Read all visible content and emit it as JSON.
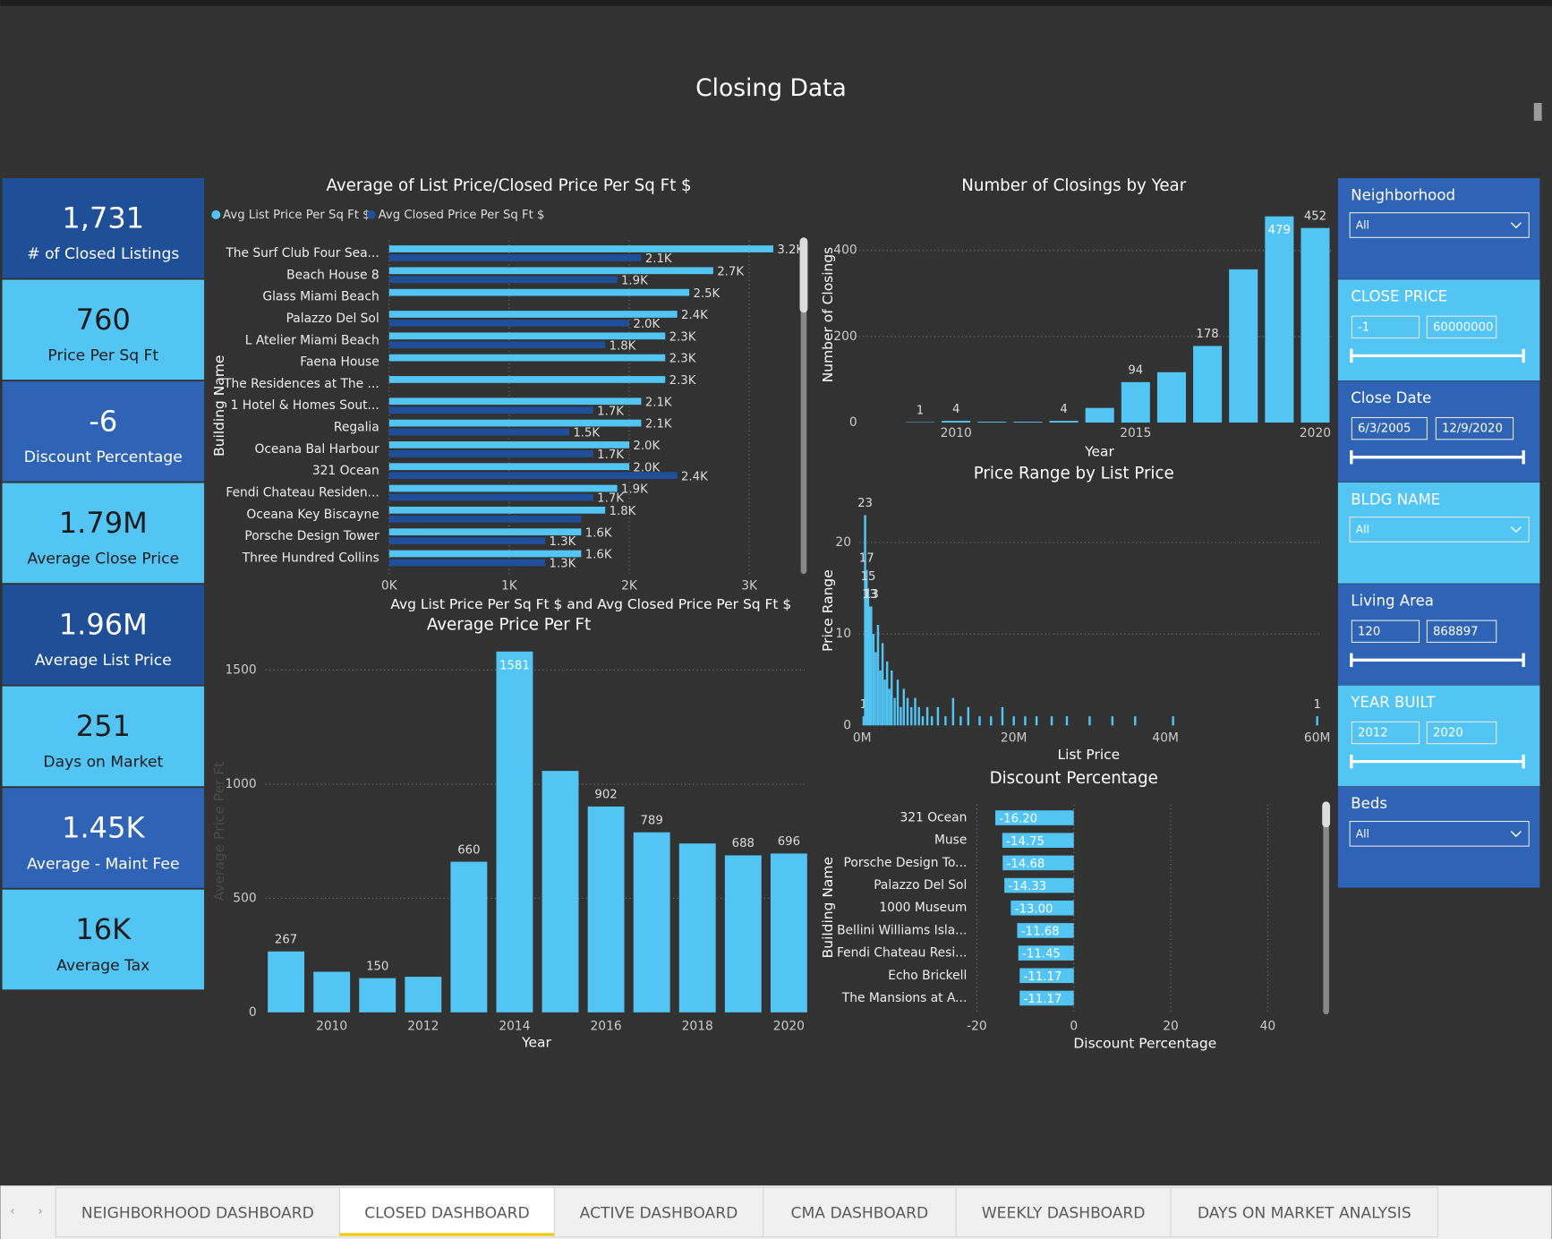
{
  "title": "Closing Data",
  "kpis": [
    {
      "value": "1,731",
      "label": "# of Closed Listings"
    },
    {
      "value": "760",
      "label": "Price Per Sq Ft"
    },
    {
      "value": "-6",
      "label": "Discount Percentage"
    },
    {
      "value": "1.79M",
      "label": "Average Close Price"
    },
    {
      "value": "1.96M",
      "label": "Average List Price"
    },
    {
      "value": "251",
      "label": "Days on Market"
    },
    {
      "value": "1.45K",
      "label": "Average - Maint Fee"
    },
    {
      "value": "16K",
      "label": "Average Tax"
    }
  ],
  "filters": [
    {
      "title": "Neighborhood",
      "value": "All"
    },
    {
      "title": "CLOSE PRICE",
      "min": "-1",
      "max": "60000000"
    },
    {
      "title": "Close Date",
      "min": "6/3/2005",
      "max": "12/9/2020"
    },
    {
      "title": "BLDG NAME",
      "value": "All"
    },
    {
      "title": "Living Area",
      "min": "120",
      "max": "868897"
    },
    {
      "title": "YEAR BUILT",
      "min": "2012",
      "max": "2020"
    },
    {
      "title": "Beds",
      "value": "All"
    }
  ],
  "tabs": [
    "NEIGHBORHOOD DASHBOARD",
    "CLOSED DASHBOARD",
    "ACTIVE DASHBOARD",
    "CMA DASHBOARD",
    "WEEKLY DASHBOARD",
    "DAYS ON MARKET ANALYSIS"
  ],
  "active_tab": 1,
  "chart_data": [
    {
      "type": "hbar",
      "title": "Average of List Price/Closed Price Per Sq Ft $",
      "x_label": "Avg List Price Per Sq Ft $ and Avg Closed Price Per Sq Ft $",
      "y_label": "Building Name",
      "categories": [
        "The Surf Club Four Sea...",
        "Beach House 8",
        "Glass Miami Beach",
        "Palazzo Del Sol",
        "L Atelier Miami Beach",
        "Faena House",
        "The Residences at The ...",
        "1 Hotel & Homes Sout...",
        "Regalia",
        "Oceana Bal Harbour",
        "321 Ocean",
        "Fendi Chateau Residen...",
        "Oceana Key Biscayne",
        "Porsche Design Tower",
        "Three Hundred Collins"
      ],
      "series": [
        {
          "name": "Avg List Price Per Sq Ft $",
          "color": "#52c5f5",
          "values": [
            3200,
            2700,
            2500,
            2400,
            2300,
            2300,
            2300,
            2100,
            2100,
            2000,
            2000,
            1900,
            1800,
            1600,
            1600
          ],
          "value_labels": [
            "3.2K",
            "2.7K",
            "2.5K",
            "2.4K",
            "2.3K",
            "2.3K",
            "2.3K",
            "2.1K",
            "2.1K",
            "2.0K",
            "2.0K",
            "1.9K",
            "1.8K",
            "1.6K",
            "1.6K"
          ]
        },
        {
          "name": "Avg Closed Price Per Sq Ft $",
          "color": "#1f4f9a",
          "values": [
            2100,
            1900,
            null,
            2000,
            1800,
            null,
            null,
            1700,
            1500,
            1700,
            2400,
            1700,
            1600,
            1300,
            1300
          ],
          "value_labels": [
            "2.1K",
            "1.9K",
            null,
            "2.0K",
            "1.8K",
            null,
            null,
            "1.7K",
            "1.5K",
            "1.7K",
            "2.4K",
            "1.7K",
            null,
            "1.3K",
            "1.3K"
          ]
        }
      ],
      "xlim": [
        0,
        3400
      ],
      "xticks": [
        {
          "value": 0,
          "label": "0K"
        },
        {
          "value": 1000,
          "label": "1K"
        },
        {
          "value": 2000,
          "label": "2K"
        },
        {
          "value": 3000,
          "label": "3K"
        }
      ],
      "grid": true
    },
    {
      "type": "column",
      "title": "Number of Closings by Year",
      "x_label": "Year",
      "y_label": "Number of Closings",
      "color": "#52c5f5",
      "x": [
        2009,
        2010,
        2011,
        2012,
        2013,
        2014,
        2015,
        2016,
        2017,
        2018,
        2019,
        2020
      ],
      "values": [
        1,
        4,
        2,
        2,
        4,
        34,
        94,
        117,
        178,
        356,
        479,
        452
      ],
      "value_labels": [
        "1",
        "4",
        null,
        null,
        "4",
        null,
        "94",
        null,
        "178",
        null,
        "479",
        "452"
      ],
      "xlim": [
        2008.4,
        2020.6
      ],
      "xticks": [
        2010,
        2015,
        2020
      ],
      "ylim": [
        0,
        500
      ],
      "yticks": [
        0,
        200,
        400
      ],
      "grid": true
    },
    {
      "type": "column",
      "title": "Price Range by List Price",
      "x_label": "List Price",
      "y_label": "Price Range",
      "color": "#52c5f5",
      "x": [
        0.2,
        0.4,
        0.6,
        0.8,
        1.0,
        1.2,
        1.5,
        1.8,
        2.1,
        2.4,
        2.7,
        3.0,
        3.3,
        3.6,
        3.9,
        4.3,
        4.7,
        5.1,
        5.5,
        6.0,
        6.5,
        7.0,
        7.5,
        8.0,
        8.6,
        9.2,
        10,
        11,
        12,
        13,
        14,
        15.5,
        17,
        18.5,
        20,
        21.5,
        23,
        25,
        27,
        30,
        33,
        36,
        41,
        60
      ],
      "values": [
        1,
        23,
        17,
        15,
        13,
        13,
        10,
        8,
        11,
        6,
        9,
        5,
        7,
        4,
        6,
        3,
        5,
        2,
        4,
        3,
        2,
        3,
        2,
        1,
        2,
        1,
        2,
        1,
        3,
        1,
        2,
        1,
        1,
        2,
        1,
        1,
        1,
        1,
        1,
        1,
        1,
        1,
        1,
        1
      ],
      "value_labels": [
        "1",
        "23",
        "17",
        "15",
        "13",
        "13",
        null,
        null,
        null,
        null,
        null,
        null,
        null,
        null,
        null,
        null,
        null,
        null,
        null,
        null,
        null,
        null,
        null,
        null,
        null,
        null,
        null,
        null,
        null,
        null,
        null,
        null,
        null,
        null,
        null,
        null,
        null,
        null,
        null,
        null,
        null,
        null,
        null,
        "1"
      ],
      "xlim": [
        0,
        60
      ],
      "xticks": [
        {
          "value": 0,
          "label": "0M"
        },
        {
          "value": 20,
          "label": "20M"
        },
        {
          "value": 40,
          "label": "40M"
        },
        {
          "value": 60,
          "label": "60M"
        }
      ],
      "ylim": [
        0,
        25
      ],
      "yticks": [
        0,
        10,
        20
      ],
      "grid": true
    },
    {
      "type": "column",
      "title": "Average Price Per Ft",
      "x_label": "Year",
      "y_label": "Average Price Per Ft",
      "color": "#52c5f5",
      "x": [
        2009,
        2010,
        2011,
        2012,
        2013,
        2014,
        2015,
        2016,
        2017,
        2018,
        2019,
        2020
      ],
      "values": [
        267,
        178,
        150,
        156,
        660,
        1581,
        1058,
        902,
        789,
        740,
        688,
        696
      ],
      "value_labels": [
        "267",
        null,
        "150",
        null,
        "660",
        "1581",
        null,
        "902",
        "789",
        null,
        "688",
        "696"
      ],
      "xlim": [
        2008.5,
        2020.5
      ],
      "xticks": [
        2010,
        2012,
        2014,
        2016,
        2018,
        2020
      ],
      "ylim": [
        0,
        1600
      ],
      "yticks": [
        0,
        500,
        1000,
        1500
      ],
      "grid": true
    },
    {
      "type": "hbar",
      "title": "Discount Percentage",
      "x_label": "Discount Percentage",
      "y_label": "Building Name",
      "categories": [
        "321 Ocean",
        "Muse",
        "Porsche Design To...",
        "Palazzo Del Sol",
        "1000 Museum",
        "Bellini Williams Isla...",
        "Fendi Chateau Resi...",
        "Echo Brickell",
        "The Mansions at A..."
      ],
      "series": [
        {
          "name": "Discount Percentage",
          "color": "#52c5f5",
          "values": [
            -16.2,
            -14.75,
            -14.68,
            -14.33,
            -13,
            -11.68,
            -11.45,
            -11.17,
            -11.17
          ],
          "value_labels": [
            "-16.20",
            "-14.75",
            "-14.68",
            "-14.33",
            "-13.00",
            "-11.68",
            "-11.45",
            "-11.17",
            "-11.17"
          ]
        }
      ],
      "xlim": [
        -20,
        50
      ],
      "xticks": [
        -20,
        0,
        20,
        40
      ],
      "grid": true
    }
  ]
}
